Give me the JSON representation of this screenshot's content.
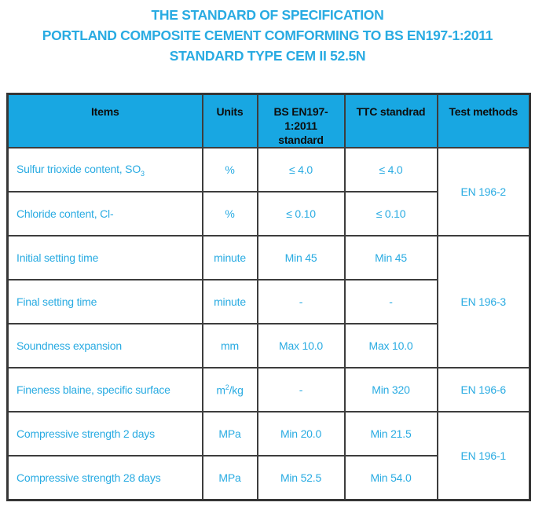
{
  "title": {
    "line1": "THE STANDARD OF SPECIFICATION",
    "line2": "PORTLAND COMPOSITE CEMENT COMFORMING TO BS EN197-1:2011",
    "line3": "STANDARD TYPE CEM II 52.5N"
  },
  "colors": {
    "accent_text": "#29ABE2",
    "header_background": "#18A7E2",
    "header_text": "#0d0d0d",
    "border": "#3d3d3d",
    "page_background": "#ffffff"
  },
  "table": {
    "headers": [
      "Items",
      "Units",
      "BS EN197-1:2011 standard",
      "TTC standrad",
      "Test methods"
    ],
    "rows": [
      {
        "item": "Sulfur trioxide content, SO",
        "item_sub": "3",
        "unit": "%",
        "bs": "≤ 4.0",
        "ttc": "≤ 4.0"
      },
      {
        "item": "Chloride content, Cl-",
        "unit": "%",
        "bs": "≤ 0.10",
        "ttc": "≤ 0.10"
      },
      {
        "item": "Initial setting time",
        "unit": "minute",
        "bs": "Min 45",
        "ttc": "Min 45"
      },
      {
        "item": "Final setting time",
        "unit": "minute",
        "bs": "-",
        "ttc": "-"
      },
      {
        "item": "Soundness expansion",
        "unit": "mm",
        "bs": "Max 10.0",
        "ttc": "Max 10.0"
      },
      {
        "item": "Fineness blaine, specific surface",
        "unit_pre": "m",
        "unit_sup": "2",
        "unit_post": "/kg",
        "bs": "-",
        "ttc": "Min 320"
      },
      {
        "item": "Compressive strength 2 days",
        "unit": "MPa",
        "bs": "Min 20.0",
        "ttc": "Min 21.5"
      },
      {
        "item": "Compressive strength 28 days",
        "unit": "MPa",
        "bs": "Min 52.5",
        "ttc": "Min 54.0"
      }
    ],
    "test_methods": [
      {
        "label": "EN 196-2",
        "rowspan": 2
      },
      {
        "label": "EN 196-3",
        "rowspan": 3
      },
      {
        "label": "EN 196-6",
        "rowspan": 1
      },
      {
        "label": "EN 196-1",
        "rowspan": 2
      }
    ]
  }
}
